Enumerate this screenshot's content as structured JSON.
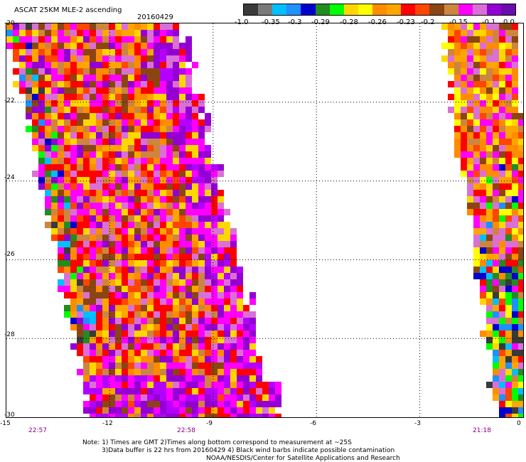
{
  "header": {
    "title": "ASCAT 25KM MLE-2 ascending",
    "date": "20160429"
  },
  "colorbar": {
    "colors": [
      "#3a3a3a",
      "#7a7a7a",
      "#00bfff",
      "#1e90ff",
      "#0000cd",
      "#228b22",
      "#00ff00",
      "#ffd700",
      "#ffff00",
      "#ff8c00",
      "#ffa500",
      "#ff0000",
      "#ff4500",
      "#8b4513",
      "#cd853f",
      "#ff00ff",
      "#da70d6",
      "#9400d3",
      "#6a0dad"
    ],
    "tick_labels": [
      "-1.0",
      "-0.35",
      "-0.3",
      "-0.29",
      "-0.28",
      "-0.26",
      "-0.23",
      "-0.2",
      "-0.15",
      "-0.1",
      "0.0"
    ]
  },
  "axes": {
    "y_labels": [
      "-20",
      "-22",
      "-24",
      "-26",
      "-28",
      "-30"
    ],
    "x_labels": [
      "-15",
      "-12",
      "-9",
      "-6",
      "-3",
      "0"
    ],
    "time_labels": [
      "22:57",
      "22:58",
      "21:18"
    ]
  },
  "notes": {
    "line1": "Note: 1) Times are GMT 2)Times along bottom correspond to measurement at ~25S",
    "line2": "3)Data buffer is 22 hrs from 20160429 4) Black wind barbs indicate possible contamination",
    "line3": "NOAA/NESDIS/Center for Satellite Applications and Research"
  },
  "chart_data": {
    "type": "heatmap",
    "title": "ASCAT 25KM MLE-2 ascending",
    "xlim": [
      -15,
      0
    ],
    "ylim": [
      -30,
      -20
    ],
    "color_scale": [
      -1.0,
      -0.35,
      -0.3,
      -0.29,
      -0.28,
      -0.26,
      -0.23,
      -0.2,
      -0.15,
      -0.1,
      0.0
    ],
    "swaths": [
      {
        "time": "22:57/22:58",
        "lon_range_at_top": [
          -15,
          -10.3
        ],
        "lon_range_at_bottom": [
          -12.6,
          -8.0
        ],
        "dominant": "red/orange/magenta, magenta near east edge"
      },
      {
        "time": "21:18",
        "lon_range_at_top": [
          -2.2,
          -0.2
        ],
        "lon_range_at_bottom": [
          -0.7,
          0.0
        ],
        "dominant": "orange/yellow with blue/green patches in south"
      }
    ]
  }
}
